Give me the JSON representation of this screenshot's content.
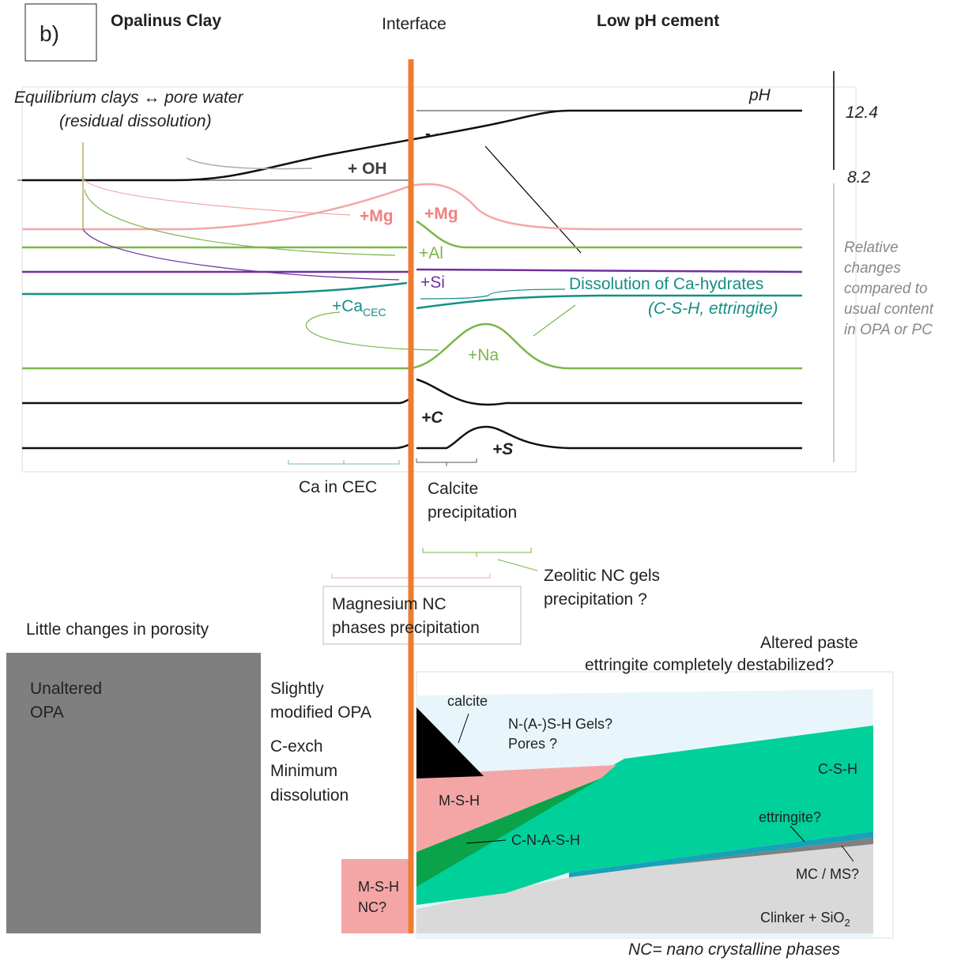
{
  "panel_label": "b)",
  "headers": {
    "left": "Opalinus Clay",
    "center": "Interface",
    "right": "Low pH cement"
  },
  "profile": {
    "equilibrium": [
      "Equilibrium clays ↔ pore water",
      "(residual dissolution)"
    ],
    "ph_label": "pH",
    "ph_high": "12.4",
    "ph_low": "8.2",
    "minus": "- -",
    "oh": "+ OH",
    "mg_left": "+Mg",
    "mg_right": "+Mg",
    "al": "+Al",
    "si": "+Si",
    "dissolution": [
      "Dissolution of Ca-hydrates",
      "(C-S-H, ettringite)"
    ],
    "ca_cec": {
      "main": "+Ca",
      "sub": "CEC"
    },
    "na": "+Na",
    "c": "+C",
    "s": "+S",
    "relative_note": [
      "Relative",
      "changes",
      "compared to",
      "usual content",
      "in OPA or PC"
    ]
  },
  "annotations": {
    "ca_in_cec": "Ca in CEC",
    "calcite_precipitation": [
      "Calcite",
      "precipitation"
    ],
    "zeolitic": [
      "Zeolitic  NC gels",
      "precipitation ?"
    ],
    "magnesium": [
      "Magnesium NC",
      "phases precipitation"
    ],
    "porosity": "Little changes in porosity"
  },
  "section": {
    "unaltered": [
      "Unaltered",
      "OPA"
    ],
    "slightly": [
      "Slightly",
      "modified OPA"
    ],
    "cexch": [
      "C-exch",
      "Minimum",
      "dissolution"
    ],
    "altered": [
      "Altered paste",
      "ettringite completely destabilized?"
    ],
    "calcite": "calcite",
    "nash": [
      "N-(A-)S-H Gels?",
      "Pores ?"
    ],
    "msh": "M-S-H",
    "csh": "C-S-H",
    "cnash": "C-N-A-S-H",
    "ettringite": "ettringite?",
    "mcms": "MC / MS?",
    "clinker": {
      "main": "Clinker + SiO",
      "sub": "2"
    },
    "msh_nc": [
      "M-S-H",
      "NC?"
    ],
    "footnote": "NC= nano crystalline phases"
  }
}
